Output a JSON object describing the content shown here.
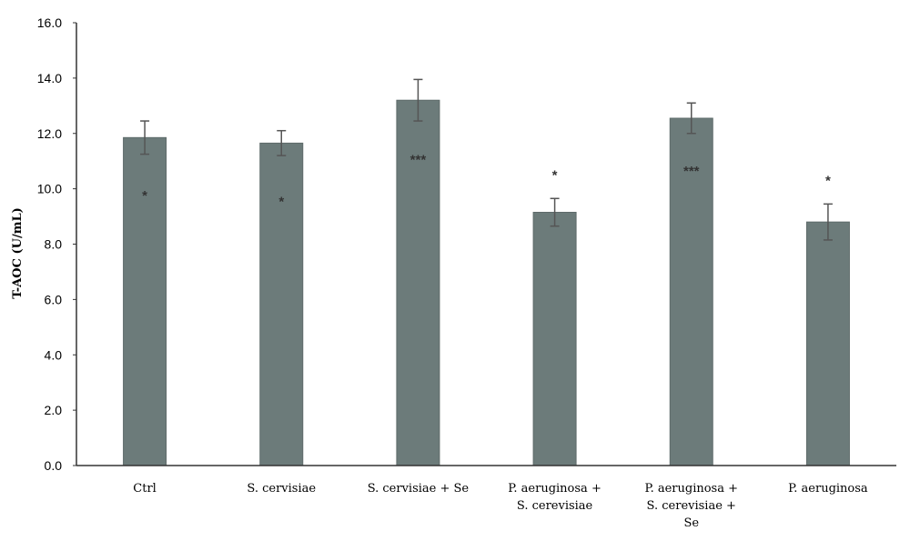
{
  "chart_data": {
    "type": "bar",
    "ylabel": "T-AOC (U/mL)",
    "xlabel": "",
    "ylim": [
      0,
      16
    ],
    "yticks": [
      "0.0",
      "2.0",
      "4.0",
      "6.0",
      "8.0",
      "10.0",
      "12.0",
      "14.0",
      "16.0"
    ],
    "grid": false,
    "bar_color": "#6c7b7a",
    "categories": [
      [
        "Ctrl"
      ],
      [
        "S. cervisiae"
      ],
      [
        "S. cervisiae + Se"
      ],
      [
        "P. aeruginosa +",
        "S. cerevisiae"
      ],
      [
        "P. aeruginosa +",
        "S. cerevisiae +",
        "Se"
      ],
      [
        "P. aeruginosa"
      ]
    ],
    "values": [
      11.85,
      11.65,
      13.2,
      9.15,
      12.55,
      8.8
    ],
    "errors": [
      0.6,
      0.45,
      0.75,
      0.5,
      0.55,
      0.65
    ],
    "significance": [
      "*",
      "*",
      "***",
      "*",
      "***",
      "*"
    ],
    "significance_y": [
      9.85,
      9.65,
      11.15,
      10.6,
      10.75,
      10.4
    ]
  }
}
